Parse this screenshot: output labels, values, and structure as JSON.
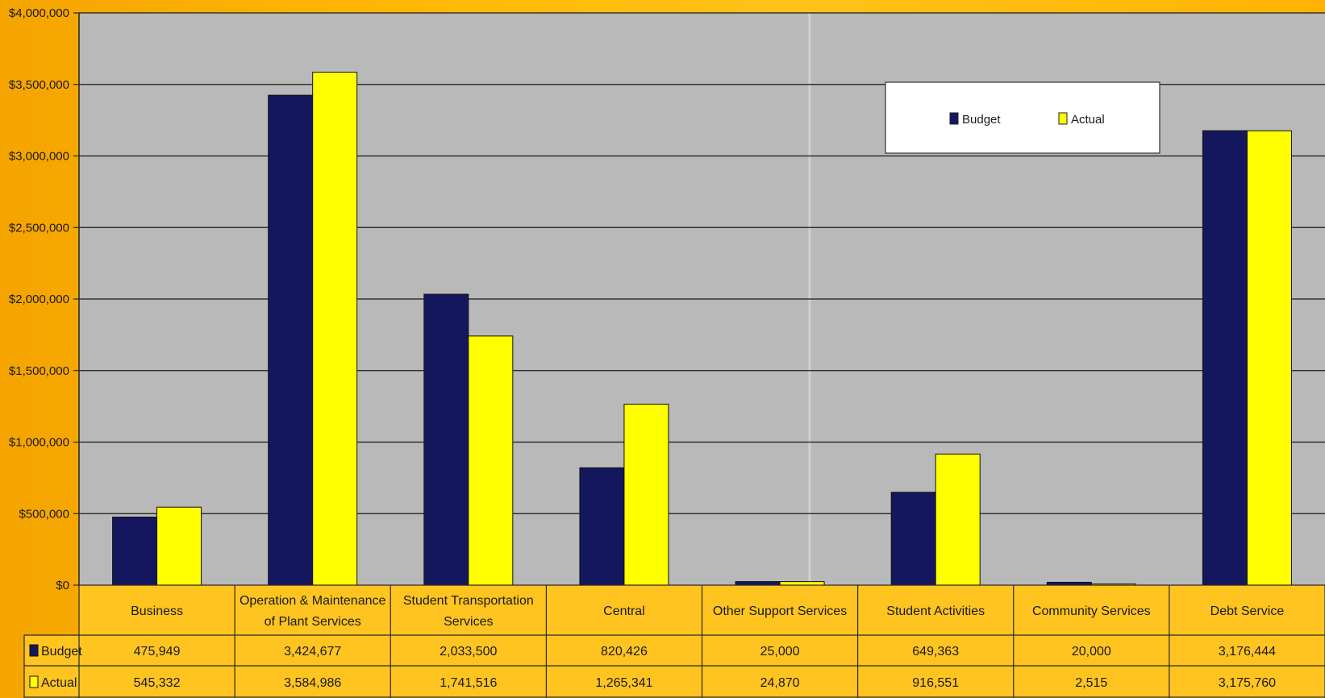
{
  "chart_data": {
    "type": "bar",
    "categories": [
      "Business",
      "Operation & Maintenance of Plant Services",
      "Student Transportation Services",
      "Central",
      "Other Support Services",
      "Student Activities",
      "Community Services",
      "Debt Service"
    ],
    "category_lines": [
      [
        "Business"
      ],
      [
        "Operation & Maintenance",
        "of Plant Services"
      ],
      [
        "Student Transportation",
        "Services"
      ],
      [
        "Central"
      ],
      [
        "Other Support Services"
      ],
      [
        "Student Activities"
      ],
      [
        "Community Services"
      ],
      [
        "Debt Service"
      ]
    ],
    "series": [
      {
        "name": "Budget",
        "color": "#14175e",
        "values": [
          475949,
          3424677,
          2033500,
          820426,
          25000,
          649363,
          20000,
          3176444
        ],
        "display": [
          "475,949",
          "3,424,677",
          "2,033,500",
          "820,426",
          "25,000",
          "649,363",
          "20,000",
          "3,176,444"
        ]
      },
      {
        "name": "Actual",
        "color": "#ffff00",
        "values": [
          545332,
          3584986,
          1741516,
          1265341,
          24870,
          916551,
          2515,
          3175760
        ],
        "display": [
          "545,332",
          "3,584,986",
          "1,741,516",
          "1,265,341",
          "24,870",
          "916,551",
          "2,515",
          "3,175,760"
        ]
      }
    ],
    "ylim": [
      0,
      4000000
    ],
    "yticks": [
      0,
      500000,
      1000000,
      1500000,
      2000000,
      2500000,
      3000000,
      3500000,
      4000000
    ],
    "ytick_labels": [
      "$0",
      "$500,000",
      "$1,000,000",
      "$1,500,000",
      "$2,000,000",
      "$2,500,000",
      "$3,000,000",
      "$3,500,000",
      "$4,000,000"
    ],
    "grid": true,
    "legend": {
      "position": "top-right",
      "items": [
        "Budget",
        "Actual"
      ]
    },
    "data_table": true,
    "plot_background": "#b9b9b9",
    "table_background": "#ffc41f"
  }
}
